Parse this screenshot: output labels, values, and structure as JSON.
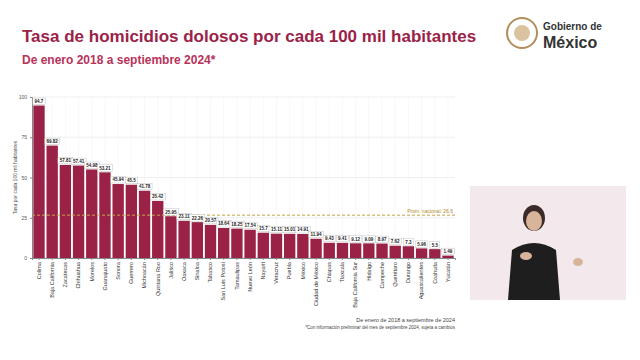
{
  "chart_data": {
    "type": "bar",
    "title": "Tasa de homicidios dolosos por cada 100 mil habitantes",
    "subtitle": "De enero 2018 a septiembre 2024*",
    "y_label": "Tasa por cada 100 mil habitantes",
    "logo": [
      "Gobierno de",
      "México"
    ],
    "notes": [
      "De enero de 2018 a septiembre de 2024",
      "*Con información preliminar del mes de septiembre 2024, sujeta a cambios"
    ],
    "average": 26.6,
    "average_label": "Prom. nacional: 26.6",
    "categories": [
      "Colima",
      "Baja California",
      "Zacatecas",
      "Chihuahua",
      "Morelos",
      "Guanajuato",
      "Sonora",
      "Guerrero",
      "Michoacán",
      "Quintana Roo",
      "Jalisco",
      "Oaxaca",
      "Sinaloa",
      "Tabasco",
      "San Luis Potosí",
      "Tamaulipas",
      "Nuevo León",
      "Nayarit",
      "Veracruz",
      "Puebla",
      "México",
      "Ciudad de México",
      "Chiapas",
      "Tlaxcala",
      "Baja California Sur",
      "Hidalgo",
      "Campeche",
      "Querétaro",
      "Durango",
      "Aguascalientes",
      "Coahuila",
      "Yucatán"
    ],
    "values": [
      94.7,
      69.82,
      57.81,
      57.41,
      54.98,
      53.21,
      45.94,
      45.5,
      41.78,
      35.42,
      25.95,
      23.11,
      22.26,
      20.57,
      18.64,
      18.25,
      17.54,
      15.7,
      15.11,
      15.01,
      14.91,
      11.94,
      9.43,
      9.41,
      9.12,
      9.09,
      8.97,
      7.62,
      7.3,
      5.96,
      5.5,
      1.49
    ],
    "color": "#9b2247",
    "ylim": [
      0,
      100
    ],
    "yticks": [
      0,
      25,
      50,
      75,
      100
    ],
    "grid": true,
    "data_labels": true
  }
}
